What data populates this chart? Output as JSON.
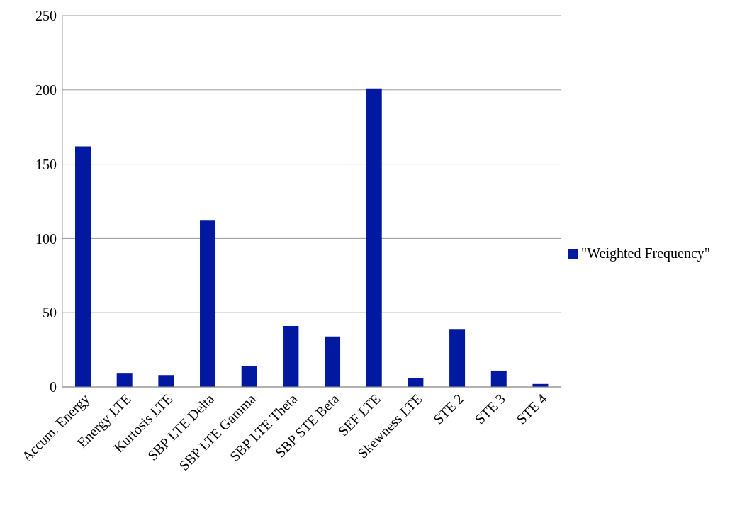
{
  "chart_data": {
    "type": "bar",
    "categories": [
      "Accum. Energy",
      "Energy LTE",
      "Kurtosis LTE",
      "SBP LTE Delta",
      "SBP LTE Gamma",
      "SBP LTE Theta",
      "SBP STE Beta",
      "SEF LTE",
      "Skewness LTE",
      "STE 2",
      "STE 3",
      "STE 4"
    ],
    "series": [
      {
        "name": "\"Weighted Frequency\"",
        "color": "#0019a0",
        "values": [
          162,
          9,
          8,
          112,
          14,
          41,
          34,
          201,
          6,
          39,
          11,
          2
        ]
      }
    ],
    "ylim": [
      0,
      250
    ],
    "yticks": [
      0,
      50,
      100,
      150,
      200,
      250
    ],
    "grid": "y",
    "legend": "right"
  }
}
